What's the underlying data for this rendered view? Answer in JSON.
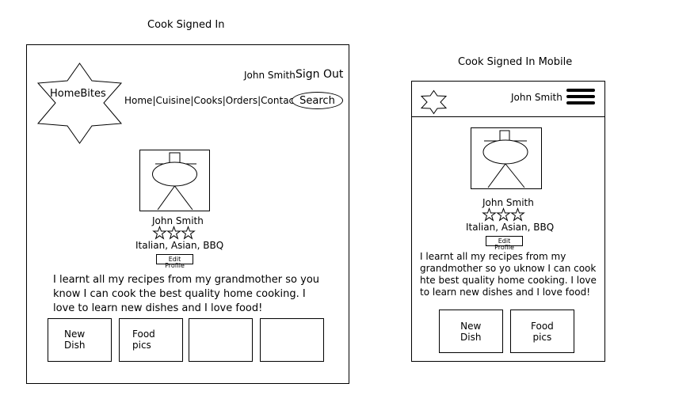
{
  "desktop": {
    "caption": "Cook Signed In",
    "logo_text": "HomeBites",
    "user_name": "John Smith",
    "sign_out_label": "Sign Out",
    "nav": {
      "home": "Home",
      "cuisine": "Cuisine",
      "cooks": "Cooks",
      "orders": "Orders",
      "contact": "Contact",
      "separator": "|"
    },
    "search_label": "Search",
    "profile": {
      "name": "John Smith",
      "rating_stars": 3,
      "cuisines": "Italian, Asian, BBQ",
      "edit_label": "Edit Profile",
      "bio": "I learnt all my recipes from my grandmother so you know I can cook the best quality home cooking. I love to learn new dishes and I love food!"
    },
    "tiles": [
      {
        "label": "New\nDish"
      },
      {
        "label": "Food\npics"
      },
      {
        "label": ""
      },
      {
        "label": ""
      }
    ]
  },
  "mobile": {
    "caption": "Cook Signed In Mobile",
    "user_name": "John Smith",
    "menu_icon": "hamburger-icon",
    "logo_icon": "star-logo-icon",
    "profile": {
      "name": "John Smith",
      "rating_stars": 3,
      "cuisines": "Italian, Asian, BBQ",
      "edit_label": "Edit Profile",
      "bio": "I learnt all my recipes from my grandmother so yo uknow I can cook hte best quality home cooking. I love to learn new dishes and I love food!"
    },
    "tiles": [
      {
        "label": "New\nDish"
      },
      {
        "label": "Food\npics"
      }
    ]
  }
}
